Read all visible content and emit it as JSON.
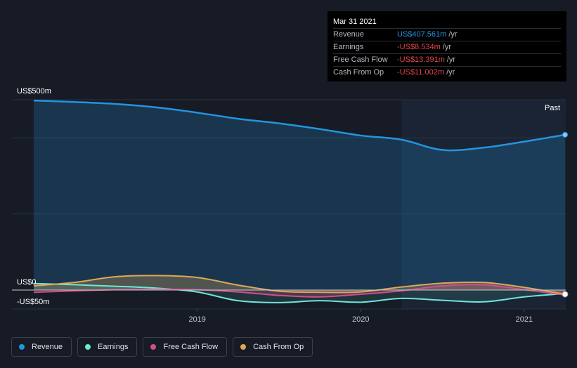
{
  "tooltip": {
    "date": "Mar 31 2021",
    "rows": [
      {
        "label": "Revenue",
        "value": "US$407.561m",
        "unit": "/yr",
        "color": "#2394df"
      },
      {
        "label": "Earnings",
        "value": "-US$8.534m",
        "unit": "/yr",
        "color": "#e6454f"
      },
      {
        "label": "Free Cash Flow",
        "value": "-US$13.391m",
        "unit": "/yr",
        "color": "#e6454f"
      },
      {
        "label": "Cash From Op",
        "value": "-US$11.002m",
        "unit": "/yr",
        "color": "#e6454f"
      }
    ]
  },
  "legend": [
    {
      "label": "Revenue",
      "color": "#2394df"
    },
    {
      "label": "Earnings",
      "color": "#6ee6d6"
    },
    {
      "label": "Free Cash Flow",
      "color": "#cf4f8d"
    },
    {
      "label": "Cash From Op",
      "color": "#e0a657"
    }
  ],
  "chart_data": {
    "type": "area",
    "past_label": "Past",
    "y_tick_labels": [
      {
        "label": "US$500m",
        "value": 500
      },
      {
        "label": "US$0",
        "value": 0
      },
      {
        "label": "-US$50m",
        "value": -50
      }
    ],
    "x_tick_labels": [
      {
        "label": "2019",
        "value": 2019.0
      },
      {
        "label": "2020",
        "value": 2020.0
      },
      {
        "label": "2021",
        "value": 2021.0
      }
    ],
    "ylim": [
      -50,
      500
    ],
    "xlim": [
      2017.92,
      2021.25
    ],
    "past_start": 2020.25,
    "x": [
      2018.0,
      2018.25,
      2018.5,
      2018.75,
      2019.0,
      2019.25,
      2019.5,
      2019.75,
      2020.0,
      2020.25,
      2020.5,
      2020.75,
      2021.0,
      2021.25
    ],
    "series": [
      {
        "name": "Revenue",
        "color": "#2394df",
        "values": [
          498,
          494,
          489,
          480,
          466,
          450,
          438,
          423,
          406,
          395,
          368,
          374,
          390,
          408
        ]
      },
      {
        "name": "Earnings",
        "color": "#6ee6d6",
        "values": [
          17,
          14,
          10,
          5,
          -5,
          -28,
          -33,
          -28,
          -32,
          -22,
          -27,
          -31,
          -18,
          -9
        ]
      },
      {
        "name": "Free Cash Flow",
        "color": "#cf4f8d",
        "values": [
          -6,
          -2,
          1,
          2,
          1,
          -5,
          -14,
          -18,
          -11,
          -2,
          11,
          14,
          1,
          -13
        ]
      },
      {
        "name": "Cash From Op",
        "color": "#e0a657",
        "values": [
          11,
          20,
          35,
          38,
          33,
          13,
          -3,
          -6,
          -5,
          8,
          18,
          20,
          7,
          -11
        ]
      }
    ]
  }
}
